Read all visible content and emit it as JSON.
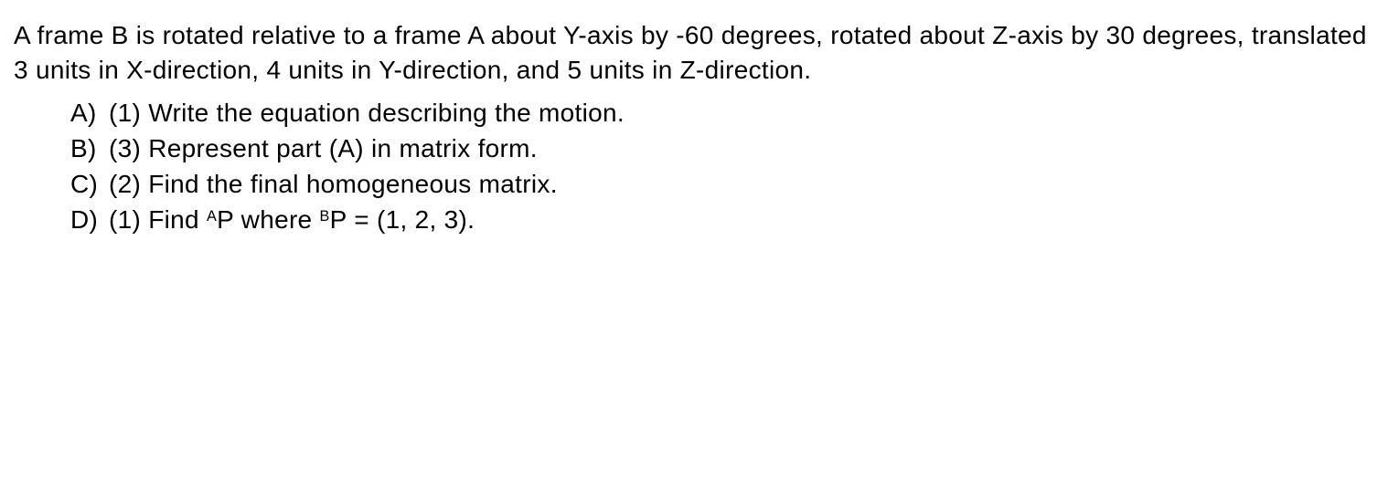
{
  "problem": {
    "statement": "A frame B is rotated relative to a frame A about Y-axis by -60 degrees, rotated about Z-axis by 30 degrees, translated 3 units in X-direction, 4 units in Y-direction, and 5 units in Z-direction."
  },
  "parts": [
    {
      "label": "A)",
      "points": "(1)",
      "text": "Write the equation describing the motion."
    },
    {
      "label": "B)",
      "points": "(3)",
      "text": "Represent part (A) in matrix form."
    },
    {
      "label": "C)",
      "points": "(2)",
      "text": "Find the final homogeneous matrix."
    },
    {
      "label": "D)",
      "points": "(1)",
      "sup1": "A",
      "symbol1": "P",
      "mid": " where ",
      "sup2": "B",
      "symbol2": "P",
      "eq": " = (1, 2, 3)."
    }
  ],
  "find_word": "Find "
}
